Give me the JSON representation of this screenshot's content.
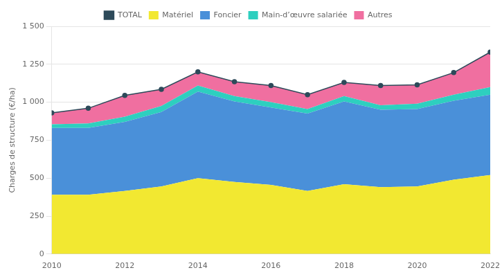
{
  "chart_data": {
    "type": "area",
    "stacked": true,
    "ylabel": "Charges de structure (€/ha)",
    "x": [
      2010,
      2011,
      2012,
      2013,
      2014,
      2015,
      2016,
      2017,
      2018,
      2019,
      2020,
      2021,
      2022
    ],
    "series": [
      {
        "name": "Matériel",
        "color": "#f2e831",
        "values": [
          390,
          390,
          415,
          445,
          500,
          475,
          455,
          415,
          460,
          440,
          445,
          490,
          520
        ]
      },
      {
        "name": "Foncier",
        "color": "#4a90d9",
        "values": [
          440,
          440,
          455,
          490,
          570,
          530,
          510,
          510,
          545,
          510,
          510,
          520,
          530
        ]
      },
      {
        "name": "Main-d’œuvre salariée",
        "color": "#2ecfbf",
        "values": [
          25,
          30,
          35,
          40,
          40,
          35,
          35,
          30,
          35,
          30,
          35,
          40,
          50
        ]
      },
      {
        "name": "Autres",
        "color": "#f06fa0",
        "values": [
          75,
          100,
          140,
          110,
          90,
          95,
          110,
          95,
          90,
          130,
          125,
          145,
          230
        ]
      },
      {
        "name": "TOTAL",
        "color": "#2d4a5a",
        "type": "line",
        "marker": "circle",
        "values": [
          930,
          960,
          1045,
          1085,
          1200,
          1135,
          1110,
          1050,
          1130,
          1110,
          1115,
          1195,
          1330
        ]
      }
    ],
    "xlim": [
      2010,
      2022
    ],
    "xticks": [
      2010,
      2012,
      2014,
      2016,
      2018,
      2020,
      2022
    ],
    "ylim": [
      0,
      1500
    ],
    "yticks": [
      0,
      250,
      500,
      750,
      {
        "value": 1000,
        "label": "1 000"
      },
      {
        "value": 1250,
        "label": "1 250"
      },
      {
        "value": 1500,
        "label": "1 500"
      }
    ],
    "grid": "y",
    "legend": "top"
  }
}
